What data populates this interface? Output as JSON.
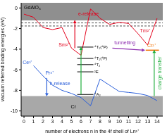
{
  "chart_data": {
    "type": "line",
    "x": [
      0,
      1,
      2,
      3,
      4,
      5,
      6,
      7,
      8,
      9,
      10,
      11,
      12,
      13,
      14
    ],
    "series": [
      {
        "color": "#e3001b",
        "values": [
          -0.6,
          -0.9,
          -1.9,
          -2.1,
          -1.9,
          -3.9,
          -4.6,
          -0.1,
          -1.0,
          -1.6,
          -1.4,
          -1.5,
          -2.5,
          -3.6,
          -1.0
        ]
      },
      {
        "color": "#2b5fd9",
        "values": [
          null,
          -5.6,
          -6.6,
          -7.5,
          -8.0,
          -8.3,
          -8.7,
          -9.5,
          -6.9,
          -7.5,
          -8.1,
          -8.2,
          -8.3,
          -8.5,
          -9.0
        ]
      }
    ],
    "xlim": [
      -0.3,
      14.6
    ],
    "ylim": [
      -10.5,
      0.5
    ],
    "xticks": [
      0,
      1,
      2,
      3,
      4,
      5,
      6,
      7,
      8,
      9,
      10,
      11,
      12,
      13,
      14
    ],
    "yticks": [
      0,
      -2,
      -4,
      -6,
      -8,
      -10
    ],
    "xlabel": "number of electrons n in the 4f shell of Ln³⁺",
    "ylabel": "vacuum referred binding energies (eV)",
    "grid": false,
    "bands": [
      {
        "label": "GdAlO₃",
        "range": [
          -1.2,
          0.5
        ],
        "color": "#8f8f8f"
      },
      {
        "range": [
          -10.5,
          -8.55
        ],
        "color": "#a8a8a8"
      }
    ],
    "exciton_levels": [
      -1.45,
      -1.75
    ],
    "cr_levels": [
      {
        "label": "⁴T₁(⁴P)",
        "value": -3.8
      },
      {
        "label": "⁴T₁(⁴F)",
        "value": -4.9
      },
      {
        "label": "⁴T₂",
        "value": -5.5
      },
      {
        "label": "²E",
        "value": -6.2
      },
      {
        "label": "⁴A₂",
        "value": -8.4
      }
    ],
    "cr_label": "Cr",
    "cr2_level": {
      "label": "Cr²⁺",
      "value": -4.1,
      "color": "#f07000"
    },
    "ion_labels": [
      {
        "text": "Sm²⁺",
        "series": 0,
        "n": 5
      },
      {
        "text": "Tm²⁺",
        "series": 0,
        "n": 12
      },
      {
        "text": "Ce³⁺",
        "series": 1,
        "n": 1
      },
      {
        "text": "Pr³⁺",
        "series": 1,
        "n": 2
      }
    ],
    "annotations": {
      "e_release": "e-release",
      "tunnelling": "tunnelling",
      "h_release": "h-release",
      "charge_transfer": "charge transfer"
    }
  }
}
